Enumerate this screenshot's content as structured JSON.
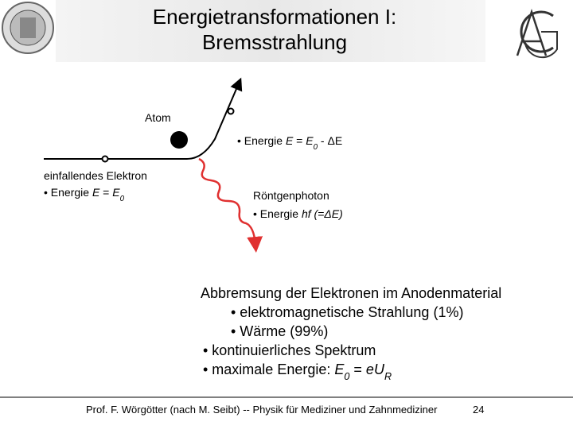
{
  "header": {
    "title_lines": [
      "Energietransformationen I:",
      "Bremsstrahlung"
    ]
  },
  "diagram": {
    "atom": "Atom",
    "electron_label": "einfallendes Elektron",
    "energy_in": {
      "parts": [
        {
          "t": "• Energie "
        },
        {
          "t": "E",
          "i": true
        },
        {
          "t": " = "
        },
        {
          "t": "E",
          "i": true
        },
        {
          "t": "0",
          "i": true,
          "sub": true
        }
      ]
    },
    "energy_out": {
      "parts": [
        {
          "t": "• Energie "
        },
        {
          "t": "E",
          "i": true
        },
        {
          "t": " = "
        },
        {
          "t": "E",
          "i": true
        },
        {
          "t": "0",
          "i": true,
          "sub": true
        },
        {
          "t": " - ΔE"
        }
      ]
    },
    "photon_label": "Röntgenphoton",
    "photon_energy": {
      "parts": [
        {
          "t": "• Energie "
        },
        {
          "t": "hf",
          "i": true
        },
        {
          "t": " (=ΔE)",
          "i": true
        }
      ]
    }
  },
  "body": {
    "lines": [
      {
        "parts": [
          {
            "t": "Abbremsung der Elektronen im Anodenmaterial"
          }
        ]
      },
      {
        "parts": [
          {
            "t": "• elektromagnetische Strahlung (1%)"
          }
        ]
      },
      {
        "parts": [
          {
            "t": "• Wärme (99%)"
          }
        ]
      },
      {
        "parts": [
          {
            "t": "• kontinuierliches Spektrum"
          }
        ]
      },
      {
        "parts": [
          {
            "t": "• maximale Energie: "
          },
          {
            "t": "E",
            "i": true
          },
          {
            "t": "0",
            "i": true,
            "sub": true
          },
          {
            "t": " = "
          },
          {
            "t": "e",
            "i": true
          },
          {
            "t": "U",
            "i": true
          },
          {
            "t": "R",
            "i": true,
            "sub": true
          }
        ]
      }
    ]
  },
  "footer": {
    "text": "Prof. F. Wörgötter (nach M. Seibt) -- Physik für Mediziner und Zahnmediziner",
    "page": "24"
  }
}
